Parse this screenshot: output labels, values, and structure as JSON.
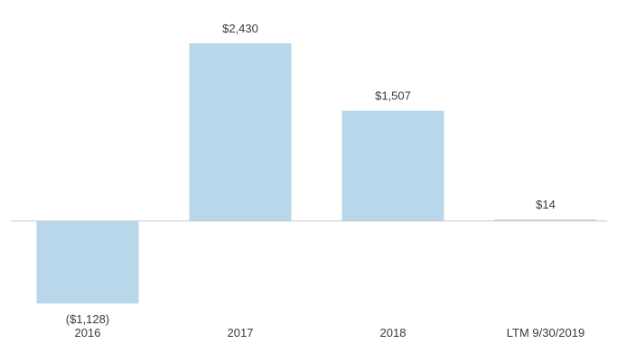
{
  "chart_data": {
    "type": "bar",
    "title": "",
    "xlabel": "",
    "ylabel": "",
    "categories": [
      "2016",
      "2017",
      "2018",
      "LTM 9/30/2019"
    ],
    "values": [
      -1128,
      2430,
      1507,
      14
    ],
    "value_labels": [
      "($1,128)",
      "$2,430",
      "$1,507",
      "$14"
    ],
    "ylim": [
      -1250,
      2700
    ],
    "grid": false,
    "legend": "none",
    "bar_color": "#b8d7ea",
    "baseline_color": "#c8c8c8",
    "text_color": "#3a3a3a"
  }
}
